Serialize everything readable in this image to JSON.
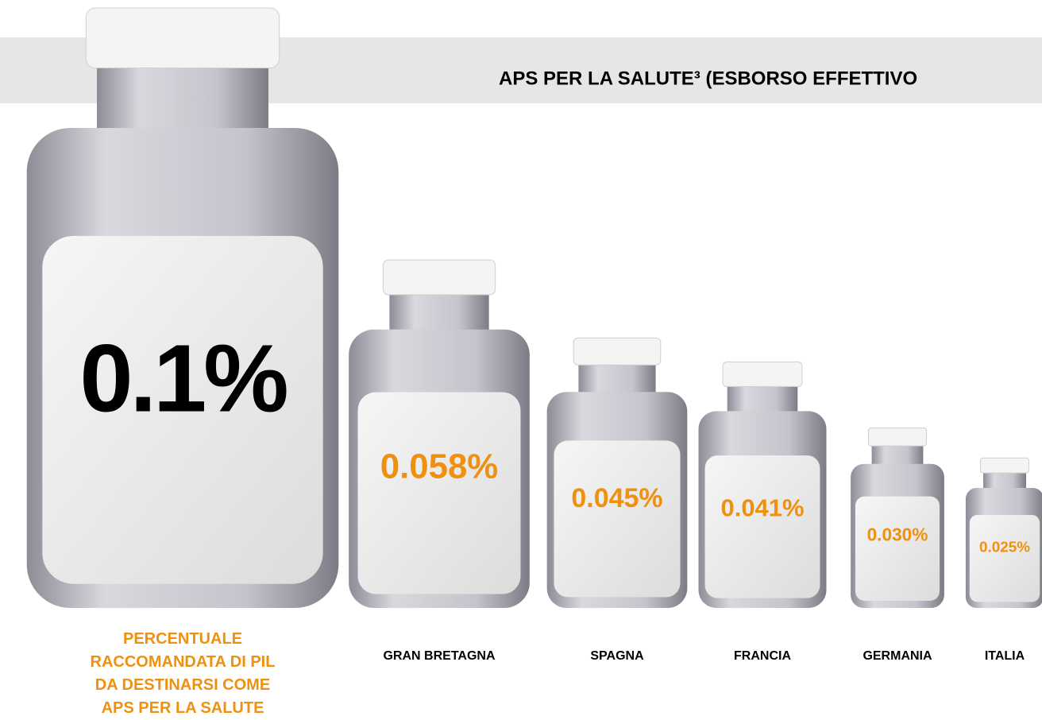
{
  "chart_data": {
    "type": "pictograph",
    "title": "APS PER LA SALUTE³ (ESBORSO EFFETTIVO",
    "reference": {
      "label": "PERCENTUALE RACCOMANDATA DI PIL DA DESTINARSI COME APS PER LA SALUTE",
      "value": 0.1,
      "value_label": "0.1%",
      "label_color": "#f0900f",
      "value_label_color": "#000000"
    },
    "categories": [
      "GRAN BRETAGNA",
      "SPAGNA",
      "FRANCIA",
      "GERMANIA",
      "ITALIA"
    ],
    "values": [
      0.058,
      0.045,
      0.041,
      0.03,
      0.025
    ],
    "value_labels": [
      "0.058%",
      "0.045%",
      "0.041%",
      "0.030%",
      "0.025%"
    ],
    "value_label_color": "#f0900f"
  }
}
